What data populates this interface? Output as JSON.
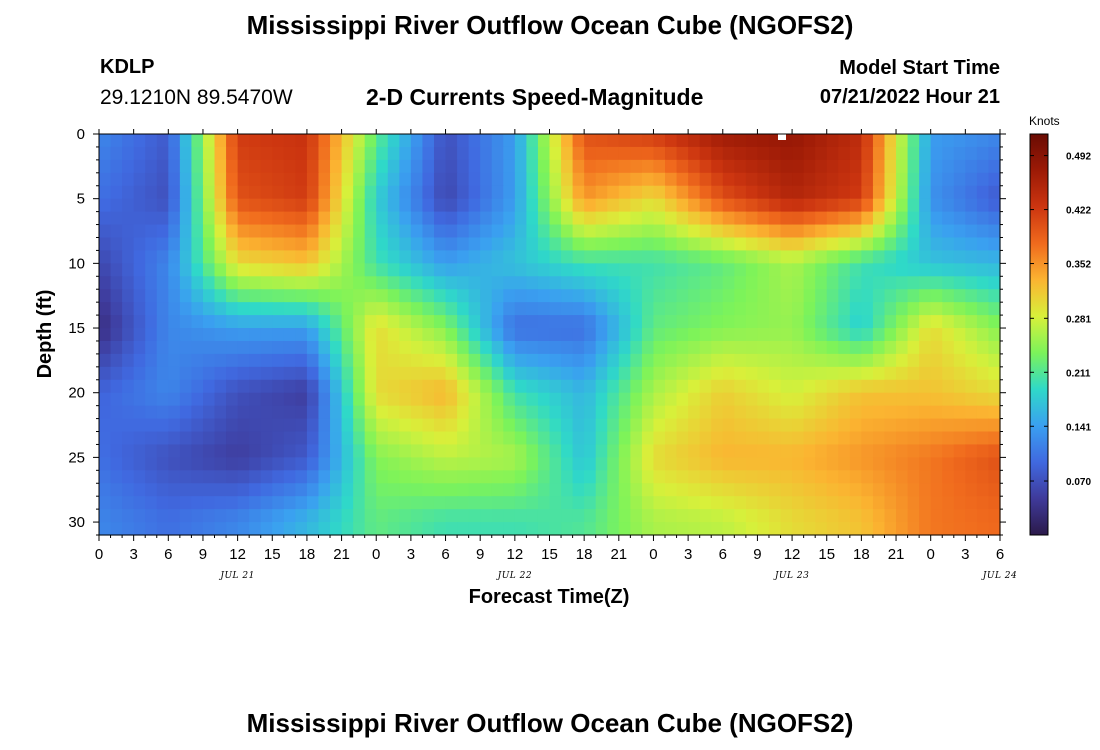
{
  "header": {
    "title": "Mississippi River Outflow Ocean Cube (NGOFS2)",
    "station_id": "KDLP",
    "station_coords": "29.1210N  89.5470W",
    "product": "2-D Currents Speed-Magnitude",
    "model_start_label": "Model Start Time",
    "model_start_value": "07/21/2022 Hour 21"
  },
  "footer": {
    "title": "Mississippi River Outflow Ocean Cube (NGOFS2)"
  },
  "chart_data": {
    "type": "heatmap",
    "title": "2-D Currents Speed-Magnitude",
    "xlabel": "Forecast Time(Z)",
    "ylabel": "Depth (ft)",
    "x_tick_labels": [
      "0",
      "3",
      "6",
      "9",
      "12",
      "15",
      "18",
      "21",
      "0",
      "3",
      "6",
      "9",
      "12",
      "15",
      "18",
      "21",
      "0",
      "3",
      "6",
      "9",
      "12",
      "15",
      "18",
      "21",
      "0",
      "3",
      "6"
    ],
    "x_hours_range": [
      0,
      78
    ],
    "date_labels": [
      {
        "text": "JUL 21",
        "hour": 12
      },
      {
        "text": "JUL 22",
        "hour": 36
      },
      {
        "text": "JUL 23",
        "hour": 60
      },
      {
        "text": "JUL 24",
        "hour": 78
      }
    ],
    "y_tick_labels": [
      "0",
      "5",
      "10",
      "15",
      "20",
      "25",
      "30"
    ],
    "ylim": [
      0,
      31
    ],
    "y_inverted": true,
    "colorbar": {
      "units": "Knots",
      "ticks": [
        "0.070",
        "0.141",
        "0.211",
        "0.281",
        "0.352",
        "0.422",
        "0.492"
      ],
      "range": [
        0,
        0.52
      ],
      "colors": [
        "#2b1a4a",
        "#3f3a9a",
        "#4069e0",
        "#3aa0f0",
        "#2fd9c8",
        "#7cf35a",
        "#d8f03a",
        "#fbb431",
        "#f06a1d",
        "#cc3510",
        "#9c1a06",
        "#6a0c04"
      ]
    },
    "speed_field": {
      "unit": "knots",
      "depth_ft": [
        0,
        5,
        10,
        15,
        20,
        25,
        30
      ],
      "time_h": [
        0,
        6,
        12,
        18,
        24,
        30,
        36,
        42,
        48,
        54,
        60,
        66,
        72,
        78
      ],
      "values": [
        [
          0.12,
          0.08,
          0.42,
          0.43,
          0.22,
          0.07,
          0.14,
          0.4,
          0.42,
          0.47,
          0.48,
          0.44,
          0.14,
          0.12
        ],
        [
          0.1,
          0.07,
          0.4,
          0.42,
          0.18,
          0.06,
          0.14,
          0.35,
          0.3,
          0.4,
          0.45,
          0.42,
          0.13,
          0.08
        ],
        [
          0.06,
          0.12,
          0.3,
          0.32,
          0.2,
          0.14,
          0.17,
          0.2,
          0.2,
          0.22,
          0.26,
          0.2,
          0.17,
          0.16
        ],
        [
          0.03,
          0.12,
          0.14,
          0.14,
          0.3,
          0.24,
          0.1,
          0.1,
          0.22,
          0.24,
          0.25,
          0.18,
          0.3,
          0.24
        ],
        [
          0.09,
          0.12,
          0.07,
          0.05,
          0.3,
          0.33,
          0.2,
          0.16,
          0.26,
          0.31,
          0.28,
          0.32,
          0.32,
          0.3
        ],
        [
          0.1,
          0.07,
          0.05,
          0.08,
          0.24,
          0.27,
          0.26,
          0.17,
          0.3,
          0.33,
          0.33,
          0.35,
          0.37,
          0.4
        ],
        [
          0.12,
          0.1,
          0.12,
          0.16,
          0.22,
          0.2,
          0.2,
          0.21,
          0.26,
          0.27,
          0.3,
          0.32,
          0.37,
          0.38
        ]
      ]
    }
  }
}
